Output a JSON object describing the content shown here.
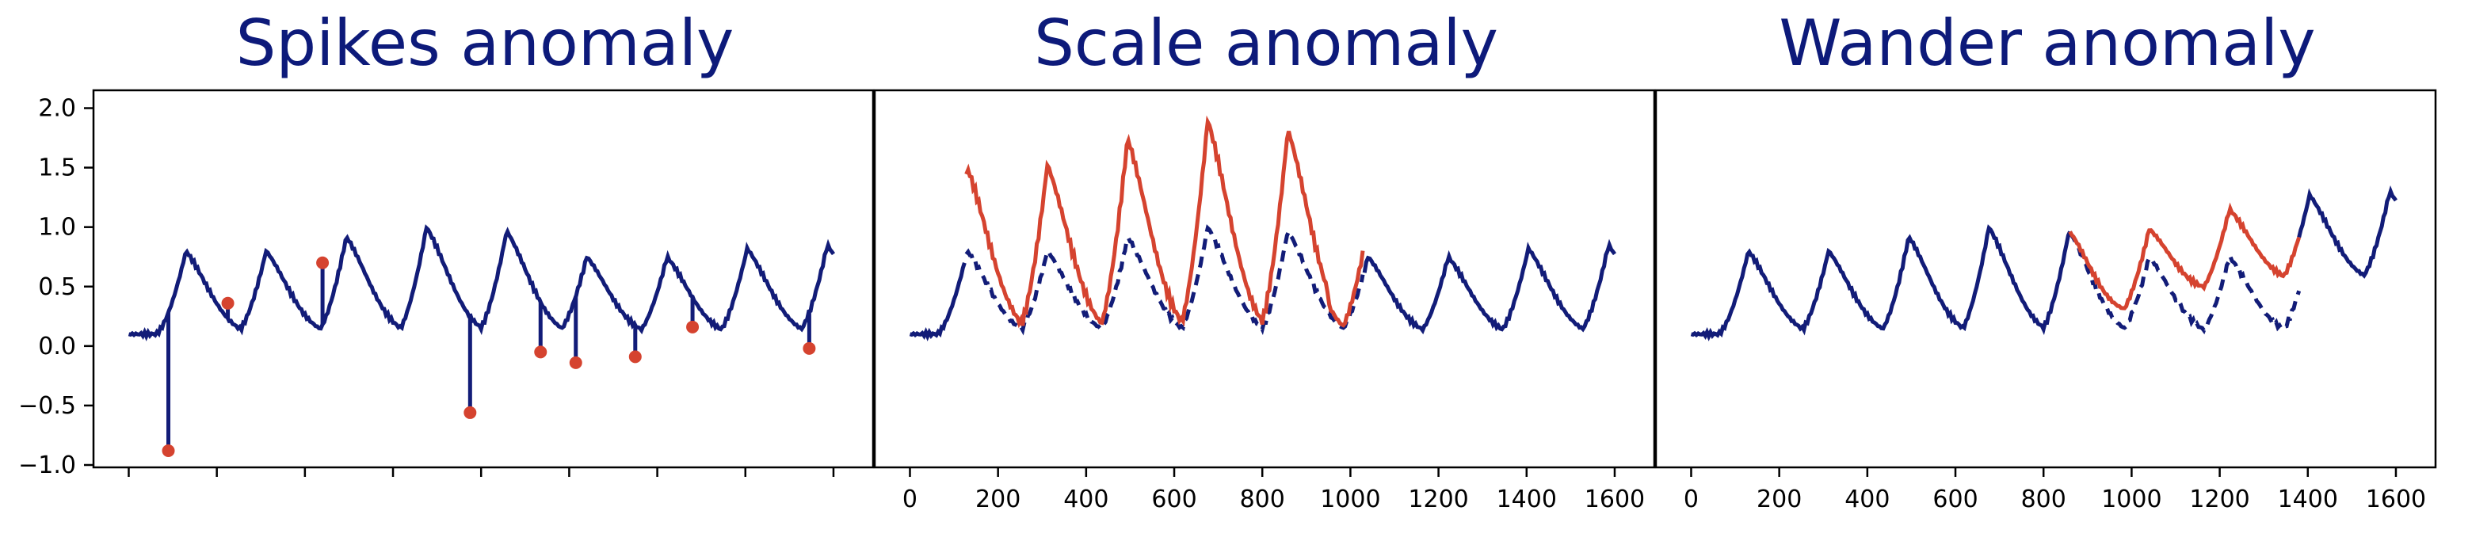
{
  "colors": {
    "normal": "#121c78",
    "anomaly": "#d5432f",
    "title": "#0d1a7a",
    "axis": "#000000"
  },
  "chart_data": [
    {
      "type": "line",
      "title": "Spikes anomaly",
      "xlim": [
        -80,
        1690
      ],
      "ylim": [
        -1.02,
        2.15
      ],
      "yticks": [
        -1.0,
        -0.5,
        0.0,
        0.5,
        1.0,
        1.5,
        2.0
      ],
      "ytick_labels": [
        "−1.0",
        "−0.5",
        "0.0",
        "0.5",
        "1.0",
        "1.5",
        "2.0"
      ],
      "xticks": [
        0,
        200,
        400,
        600,
        800,
        1000,
        1200,
        1400,
        1600
      ],
      "xtick_labels": [],
      "base_signal": {
        "period": 182,
        "first_peak": 130,
        "length": 1600,
        "peak": [
          0.8,
          0.8,
          0.92,
          1.0,
          0.97,
          0.75,
          0.75,
          0.82,
          0.85
        ],
        "baseline": 0.1
      },
      "series": [
        {
          "name": "",
          "style": "solid",
          "color": "normal"
        }
      ],
      "spikes": [
        {
          "x": 90,
          "y": -0.88
        },
        {
          "x": 225,
          "y": 0.36
        },
        {
          "x": 440,
          "y": 0.7
        },
        {
          "x": 775,
          "y": -0.56
        },
        {
          "x": 935,
          "y": -0.05
        },
        {
          "x": 1015,
          "y": -0.14
        },
        {
          "x": 1150,
          "y": -0.09
        },
        {
          "x": 1280,
          "y": 0.16
        },
        {
          "x": 1545,
          "y": -0.02
        }
      ]
    },
    {
      "type": "line",
      "title": "Scale anomaly",
      "xlim": [
        -80,
        1690
      ],
      "ylim": [
        -1.02,
        2.15
      ],
      "xticks": [
        0,
        200,
        400,
        600,
        800,
        1000,
        1200,
        1400,
        1600
      ],
      "xtick_labels": [
        "0",
        "200",
        "400",
        "600",
        "800",
        "1000",
        "1200",
        "1400",
        "1600"
      ],
      "base_signal": {
        "period": 182,
        "first_peak": 130,
        "length": 1600,
        "peak": [
          0.8,
          0.8,
          0.92,
          1.0,
          0.97,
          0.75,
          0.75,
          0.82,
          0.85
        ],
        "baseline": 0.1
      },
      "anomaly_range": [
        125,
        1030
      ],
      "anomaly_type": "scale",
      "anomaly_peaks": [
        1.6,
        1.63,
        1.85,
        2.0,
        1.92,
        1.05
      ],
      "series": [
        {
          "name": "",
          "style": "solid",
          "color": "normal"
        },
        {
          "name": "",
          "style": "dashed",
          "color": "normal"
        },
        {
          "name": "",
          "style": "solid",
          "color": "anomaly"
        }
      ]
    },
    {
      "type": "line",
      "title": "Wander anomaly",
      "xlim": [
        -80,
        1690
      ],
      "ylim": [
        -1.02,
        2.15
      ],
      "xticks": [
        0,
        200,
        400,
        600,
        800,
        1000,
        1200,
        1400,
        1600
      ],
      "xtick_labels": [
        "0",
        "200",
        "400",
        "600",
        "800",
        "1000",
        "1200",
        "1400",
        "1600"
      ],
      "base_signal": {
        "period": 182,
        "first_peak": 130,
        "length": 1600,
        "peak": [
          0.8,
          0.8,
          0.92,
          1.0,
          0.97,
          0.75,
          0.75,
          0.82,
          0.85
        ],
        "baseline": 0.1
      },
      "anomaly_range": [
        860,
        1380
      ],
      "anomaly_type": "wander",
      "wander_offset": [
        0,
        0.45
      ],
      "tail_peaks": [
        1.3,
        1.38
      ],
      "series": [
        {
          "name": "",
          "style": "solid",
          "color": "normal"
        },
        {
          "name": "",
          "style": "dashed",
          "color": "normal"
        },
        {
          "name": "",
          "style": "solid",
          "color": "anomaly"
        }
      ]
    }
  ]
}
